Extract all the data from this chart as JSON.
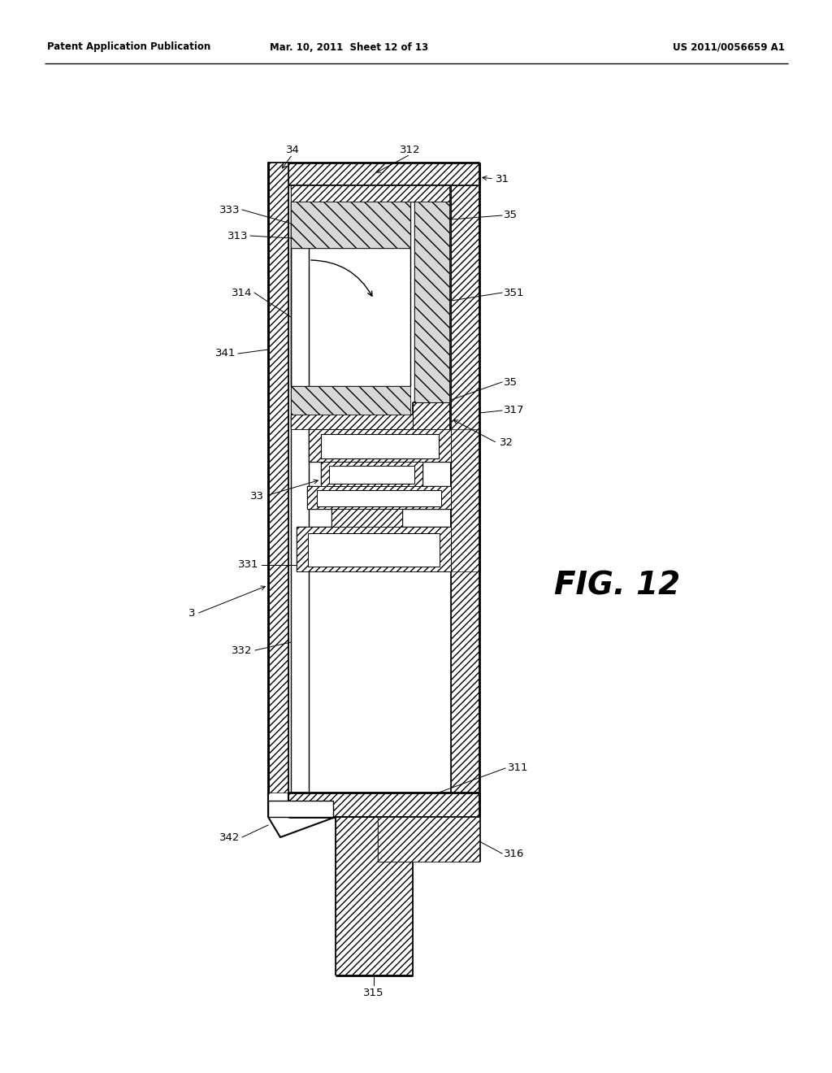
{
  "header_left": "Patent Application Publication",
  "header_center": "Mar. 10, 2011  Sheet 12 of 13",
  "header_right": "US 2011/0056659 A1",
  "title": "FIG. 12",
  "bg": "#ffffff"
}
